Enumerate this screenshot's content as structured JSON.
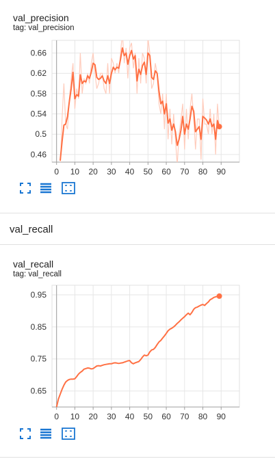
{
  "cards": [
    {
      "title": "val_precision",
      "tag": "tag: val_precision"
    },
    {
      "title": "val_recall",
      "tag": "tag: val_recall"
    }
  ],
  "section": {
    "title": "val_recall"
  },
  "toolbar": {
    "icons": [
      "fullscreen-icon",
      "data-table-icon",
      "fit-domain-icon"
    ],
    "color": "#1976d2"
  },
  "colors": {
    "line": "#ff7043",
    "raw_line": "#ffccbc",
    "axis": "#9e9e9e",
    "grid": "#e6e6e6"
  },
  "chart_data": [
    {
      "type": "line",
      "title": "val_precision",
      "xlabel": "",
      "ylabel": "",
      "xlim": [
        -2.5,
        100
      ],
      "ylim": [
        0.445,
        0.685
      ],
      "xticks": [
        0,
        10,
        20,
        30,
        40,
        50,
        60,
        70,
        80,
        90
      ],
      "yticks": [
        0.46,
        0.5,
        0.54,
        0.58,
        0.62,
        0.66
      ],
      "ytick_labels": [
        "0.46",
        "0.5",
        "0.54",
        "0.58",
        "0.62",
        "0.66"
      ],
      "grid": true,
      "series": [
        {
          "x": [
            2,
            3,
            4,
            5,
            6,
            7,
            8,
            9,
            10,
            11,
            12,
            13,
            14,
            15,
            16,
            17,
            18,
            19,
            20,
            21,
            22,
            23,
            24,
            25,
            26,
            27,
            28,
            29,
            30,
            31,
            32,
            33,
            34,
            35,
            36,
            37,
            38,
            39,
            40,
            41,
            42,
            43,
            44,
            45,
            46,
            47,
            48,
            49,
            50,
            51,
            52,
            53,
            54,
            55,
            56,
            57,
            58,
            59,
            60,
            61,
            62,
            63,
            64,
            65,
            66,
            67,
            68,
            69,
            70,
            71,
            72,
            73,
            74,
            75,
            76,
            77,
            78,
            79,
            80,
            81,
            82,
            83,
            84,
            85,
            86,
            87,
            88,
            89
          ],
          "values": [
            0.448,
            0.485,
            0.518,
            0.52,
            0.535,
            0.565,
            0.59,
            0.622,
            0.57,
            0.578,
            0.575,
            0.617,
            0.6,
            0.605,
            0.603,
            0.615,
            0.61,
            0.623,
            0.64,
            0.637,
            0.612,
            0.608,
            0.61,
            0.615,
            0.605,
            0.6,
            0.615,
            0.6,
            0.62,
            0.632,
            0.627,
            0.632,
            0.63,
            0.648,
            0.67,
            0.655,
            0.66,
            0.638,
            0.655,
            0.665,
            0.648,
            0.655,
            0.605,
            0.628,
            0.618,
            0.635,
            0.642,
            0.618,
            0.66,
            0.655,
            0.612,
            0.608,
            0.625,
            0.62,
            0.585,
            0.56,
            0.565,
            0.54,
            0.56,
            0.522,
            0.53,
            0.508,
            0.52,
            0.505,
            0.478,
            0.49,
            0.508,
            0.535,
            0.5,
            0.52,
            0.51,
            0.53,
            0.555,
            0.545,
            0.505,
            0.51,
            0.515,
            0.49,
            0.535,
            0.532,
            0.528,
            0.52,
            0.53,
            0.515,
            0.52,
            0.49,
            0.527,
            0.515
          ]
        }
      ],
      "raw_series": [
        {
          "values": [
            0.43,
            0.53,
            0.6,
            0.52,
            0.51,
            0.57,
            0.61,
            0.64,
            0.55,
            0.59,
            0.57,
            0.66,
            0.58,
            0.61,
            0.6,
            0.62,
            0.6,
            0.64,
            0.66,
            0.62,
            0.59,
            0.6,
            0.62,
            0.62,
            0.59,
            0.58,
            0.64,
            0.58,
            0.65,
            0.64,
            0.62,
            0.64,
            0.62,
            0.66,
            0.7,
            0.64,
            0.67,
            0.61,
            0.67,
            0.68,
            0.63,
            0.66,
            0.58,
            0.65,
            0.6,
            0.66,
            0.65,
            0.6,
            0.69,
            0.66,
            0.59,
            0.6,
            0.64,
            0.62,
            0.56,
            0.54,
            0.58,
            0.51,
            0.58,
            0.49,
            0.55,
            0.48,
            0.54,
            0.49,
            0.44,
            0.5,
            0.53,
            0.56,
            0.47,
            0.55,
            0.49,
            0.55,
            0.58,
            0.53,
            0.47,
            0.53,
            0.53,
            0.45,
            0.57,
            0.52,
            0.52,
            0.5,
            0.55,
            0.5,
            0.54,
            0.46,
            0.56,
            0.51
          ]
        }
      ],
      "last_point": {
        "x": 89,
        "y": 0.515
      }
    },
    {
      "type": "line",
      "title": "val_recall",
      "xlabel": "",
      "ylabel": "",
      "xlim": [
        -2.5,
        100
      ],
      "ylim": [
        0.6,
        0.98
      ],
      "xticks": [
        0,
        10,
        20,
        30,
        40,
        50,
        60,
        70,
        80,
        90
      ],
      "yticks": [
        0.65,
        0.75,
        0.85,
        0.95
      ],
      "ytick_labels": [
        "0.65",
        "0.75",
        "0.85",
        "0.95"
      ],
      "grid": true,
      "series": [
        {
          "x": [
            0,
            1,
            2,
            3,
            4,
            5,
            6,
            7,
            8,
            9,
            10,
            11,
            12,
            13,
            14,
            15,
            16,
            17,
            18,
            19,
            20,
            21,
            22,
            23,
            24,
            25,
            26,
            27,
            28,
            29,
            30,
            31,
            32,
            33,
            34,
            35,
            36,
            37,
            38,
            39,
            40,
            41,
            42,
            43,
            44,
            45,
            46,
            47,
            48,
            49,
            50,
            51,
            52,
            53,
            54,
            55,
            56,
            57,
            58,
            59,
            60,
            61,
            62,
            63,
            64,
            65,
            66,
            67,
            68,
            69,
            70,
            71,
            72,
            73,
            74,
            75,
            76,
            77,
            78,
            79,
            80,
            81,
            82,
            83,
            84,
            85,
            86,
            87,
            88,
            89
          ],
          "values": [
            0.6,
            0.625,
            0.64,
            0.655,
            0.668,
            0.678,
            0.683,
            0.686,
            0.687,
            0.687,
            0.688,
            0.695,
            0.703,
            0.708,
            0.712,
            0.718,
            0.72,
            0.722,
            0.721,
            0.719,
            0.72,
            0.724,
            0.728,
            0.729,
            0.728,
            0.73,
            0.732,
            0.733,
            0.734,
            0.735,
            0.735,
            0.737,
            0.738,
            0.737,
            0.736,
            0.737,
            0.738,
            0.74,
            0.742,
            0.744,
            0.745,
            0.738,
            0.735,
            0.738,
            0.74,
            0.742,
            0.748,
            0.756,
            0.762,
            0.76,
            0.762,
            0.772,
            0.778,
            0.78,
            0.786,
            0.795,
            0.803,
            0.808,
            0.815,
            0.822,
            0.83,
            0.838,
            0.843,
            0.846,
            0.85,
            0.855,
            0.861,
            0.866,
            0.872,
            0.877,
            0.882,
            0.888,
            0.893,
            0.888,
            0.895,
            0.905,
            0.91,
            0.912,
            0.915,
            0.918,
            0.92,
            0.917,
            0.923,
            0.928,
            0.935,
            0.938,
            0.942,
            0.944,
            0.945,
            0.946
          ]
        }
      ],
      "last_point": {
        "x": 89,
        "y": 0.946
      }
    }
  ]
}
